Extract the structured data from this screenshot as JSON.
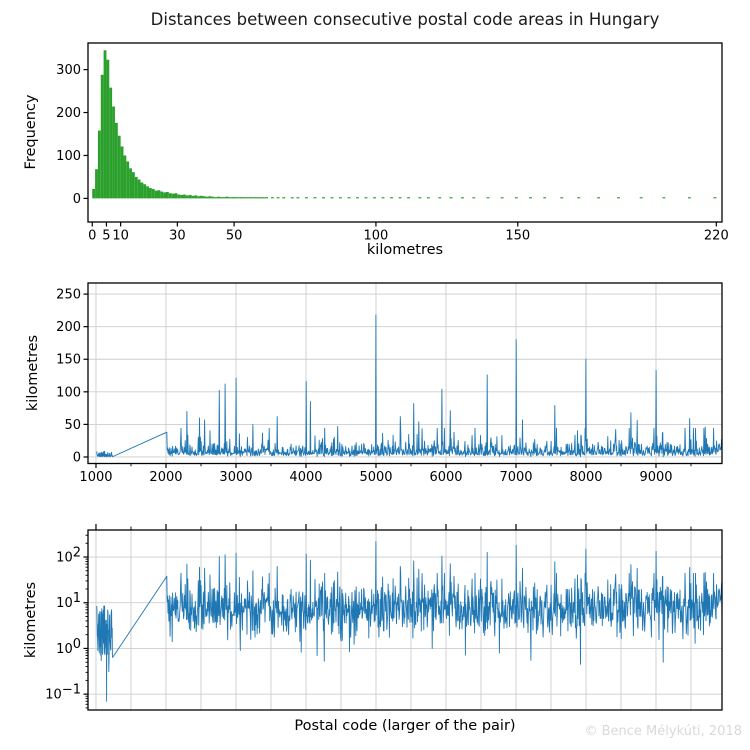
{
  "figure_title": "Distances between consecutive postal code areas in Hungary",
  "watermark": "© Bence Mélykúti, 2018",
  "colors": {
    "hist_fill": "#2ca02c",
    "line": "#1f77b4",
    "grid": "#cdcdcd",
    "spine": "#000000",
    "text": "#000000",
    "title": "#1a1a1a",
    "watermark": "#d9d9d9",
    "background": "#ffffff"
  },
  "chart_data": [
    {
      "type": "bar",
      "subtype": "histogram",
      "ylabel": "Frequency",
      "xlabel": "kilometres",
      "xticks": [
        0,
        5,
        10,
        30,
        50,
        100,
        150,
        220
      ],
      "yticks": [
        0,
        100,
        200,
        300
      ],
      "xlim": [
        -1.5,
        222
      ],
      "ylim": [
        -55,
        362
      ],
      "grid": false,
      "bin_start_km": 0,
      "bin_width_km": 1,
      "bin_values": [
        22,
        68,
        158,
        288,
        345,
        323,
        258,
        214,
        176,
        146,
        121,
        100,
        86,
        70,
        61,
        50,
        44,
        37,
        33,
        28,
        24,
        22,
        18,
        19,
        16,
        14,
        15,
        12,
        11,
        12,
        9,
        8,
        9,
        7,
        8,
        6,
        7,
        5,
        6,
        5,
        4,
        5,
        4,
        3,
        4,
        3,
        3,
        4,
        2,
        3,
        3,
        2,
        3,
        2,
        2,
        3,
        1,
        2,
        2,
        1,
        2,
        1
      ],
      "sparse_bins": [
        [
          63,
          2
        ],
        [
          65,
          1
        ],
        [
          67,
          2
        ],
        [
          70,
          1
        ],
        [
          72,
          2
        ],
        [
          75,
          1
        ],
        [
          78,
          2
        ],
        [
          81,
          1
        ],
        [
          84,
          2
        ],
        [
          87,
          1
        ],
        [
          90,
          2
        ],
        [
          93,
          1
        ],
        [
          96,
          1
        ],
        [
          99,
          2
        ],
        [
          102,
          1
        ],
        [
          105,
          1
        ],
        [
          108,
          2
        ],
        [
          111,
          1
        ],
        [
          115,
          1
        ],
        [
          118,
          2
        ],
        [
          122,
          1
        ],
        [
          126,
          1
        ],
        [
          130,
          2
        ],
        [
          134,
          1
        ],
        [
          139,
          1
        ],
        [
          144,
          1
        ],
        [
          149,
          1
        ],
        [
          154,
          1
        ],
        [
          159,
          1
        ],
        [
          165,
          1
        ],
        [
          171,
          1
        ],
        [
          178,
          1
        ],
        [
          185,
          1
        ],
        [
          193,
          1
        ],
        [
          201,
          1
        ],
        [
          210,
          1
        ],
        [
          219,
          1
        ]
      ]
    },
    {
      "type": "line",
      "yscale": "linear",
      "ylabel": "kilometres",
      "xlabel": "",
      "xticks": [
        1000,
        2000,
        3000,
        4000,
        5000,
        6000,
        7000,
        8000,
        9000
      ],
      "minor_xtick_step": 500,
      "yticks": [
        0,
        50,
        100,
        150,
        200,
        250
      ],
      "xlim": [
        886,
        9943
      ],
      "ylim": [
        -10,
        267
      ],
      "grid": true,
      "grid_x_step": 1000
    },
    {
      "type": "line",
      "yscale": "log",
      "ylabel": "kilometres",
      "xlabel": "Postal code (larger of the pair)",
      "xticks": [
        1000,
        2000,
        3000,
        4000,
        5000,
        6000,
        7000,
        8000,
        9000
      ],
      "minor_xtick_step": 500,
      "xtick_labels_visible": false,
      "xticks_on_top": true,
      "ytick_values": [
        0.1,
        1,
        10,
        100
      ],
      "ytick_exponents": [
        "−1",
        "0",
        "1",
        "2"
      ],
      "xlim": [
        886,
        9943
      ],
      "ylim": [
        0.045,
        390
      ],
      "grid": true,
      "grid_x_step": 500
    }
  ],
  "series_spec": {
    "name": "distance to previous postal code area (km) vs postal code (larger of the pair)",
    "seed": 7,
    "budapest_cluster": {
      "x_start": 1011,
      "x_end": 1239,
      "x_step": 4,
      "median_km": 2.0,
      "sigma": 0.85,
      "min_km": 0.15,
      "max_km": 8.5
    },
    "budapest_dip": [
      1150,
      0.07
    ],
    "gap_segment": {
      "from_x": 1239,
      "to_x": 2011,
      "to_km": 38
    },
    "main_band": {
      "x_start": 2011,
      "x_end": 9945,
      "x_step": 6,
      "median_km": 8,
      "sigma": 0.72,
      "min_km": 0.45,
      "max_km": 44
    },
    "peaks": [
      [
        2300,
        70
      ],
      [
        2480,
        60
      ],
      [
        2550,
        57
      ],
      [
        2760,
        102
      ],
      [
        2845,
        112
      ],
      [
        3000,
        121
      ],
      [
        3240,
        50
      ],
      [
        3590,
        62
      ],
      [
        4000,
        116
      ],
      [
        4060,
        85
      ],
      [
        4450,
        47
      ],
      [
        5000,
        218
      ],
      [
        5345,
        62
      ],
      [
        5540,
        82
      ],
      [
        5610,
        54
      ],
      [
        5940,
        104
      ],
      [
        6060,
        71
      ],
      [
        6590,
        126
      ],
      [
        7000,
        180
      ],
      [
        7090,
        57
      ],
      [
        7555,
        79
      ],
      [
        8000,
        150
      ],
      [
        8640,
        68
      ],
      [
        8730,
        56
      ],
      [
        9000,
        133
      ],
      [
        9480,
        59
      ],
      [
        9700,
        46
      ]
    ],
    "dips": [
      [
        2090,
        1.4
      ],
      [
        3060,
        0.9
      ],
      [
        4160,
        0.7
      ],
      [
        4620,
        0.85
      ],
      [
        5800,
        1.0
      ],
      [
        6760,
        0.8
      ],
      [
        7210,
        0.55
      ],
      [
        7920,
        0.45
      ],
      [
        9100,
        0.5
      ],
      [
        9560,
        1.3
      ]
    ]
  }
}
